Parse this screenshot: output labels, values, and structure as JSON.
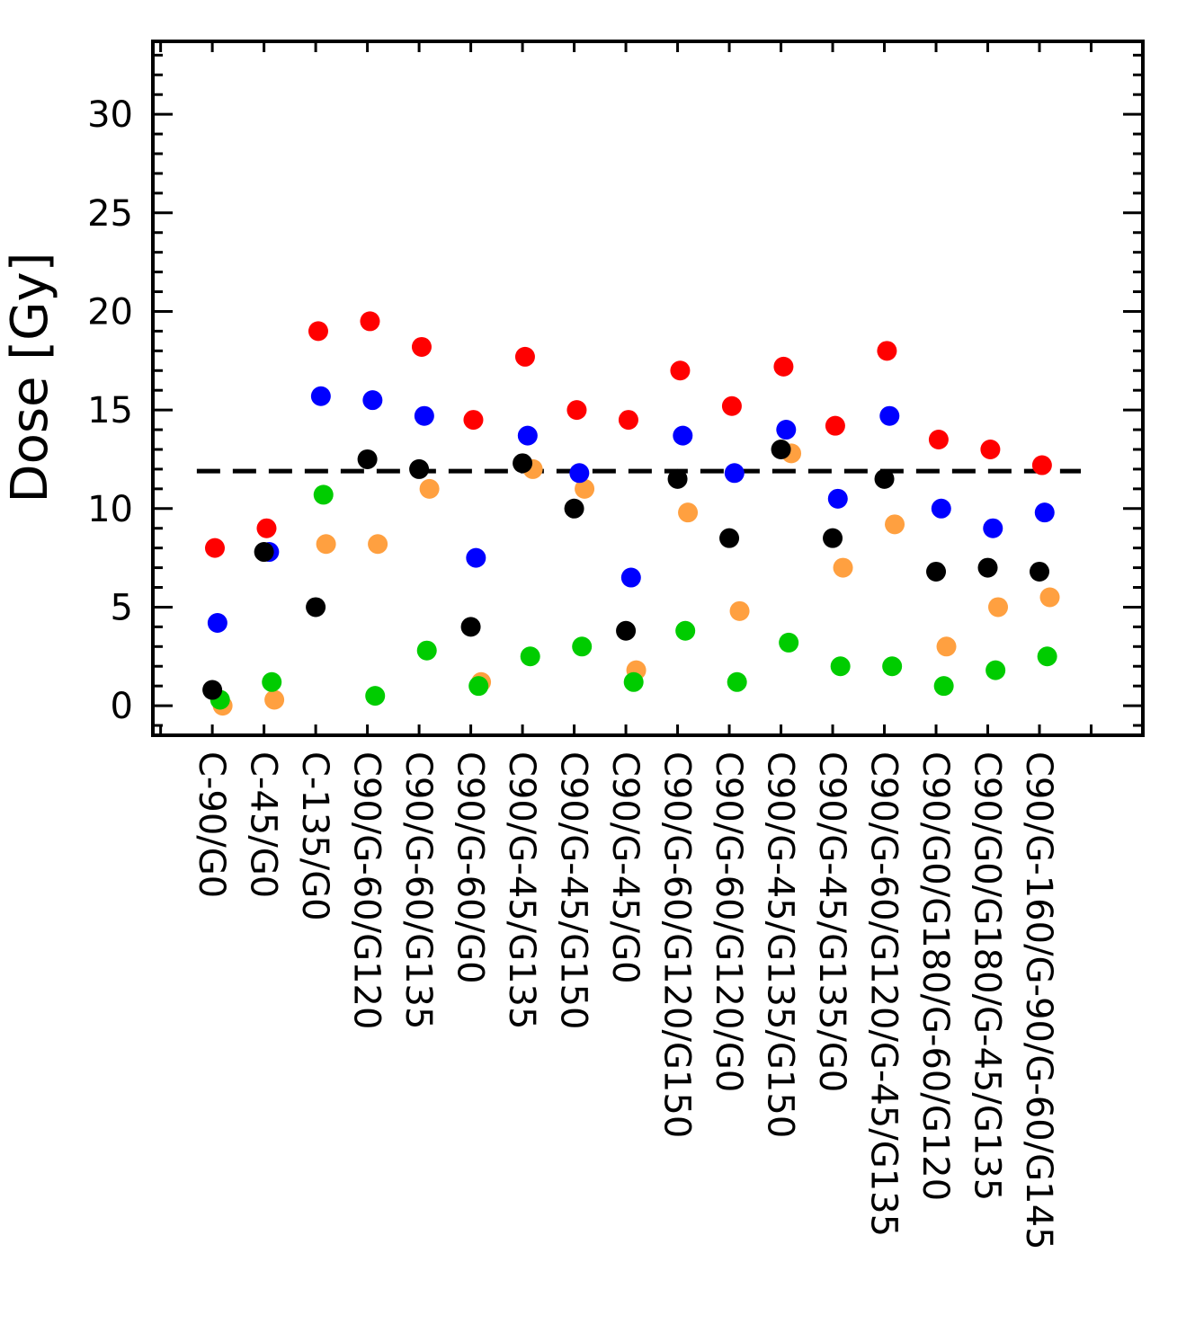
{
  "chart_data": {
    "type": "scatter",
    "ylabel": "Dose  [Gy]",
    "xlabel": "",
    "title": "",
    "ylim": [
      -1.5,
      33.7
    ],
    "yticks": [
      0,
      5,
      10,
      15,
      20,
      25,
      30
    ],
    "grid": false,
    "legend": "none",
    "reference_line": {
      "y": 11.9,
      "style": "dashed",
      "color": "#000000"
    },
    "categories": [
      "C-90/G0",
      "C-45/G0",
      "C-135/G0",
      "C90/G-60/G120",
      "C90/G-60/G135",
      "C90/G-60/G0",
      "C90/G-45/G135",
      "C90/G-45/G150",
      "C90/G-45/G0",
      "C90/G-60/G120/G150",
      "C90/G-60/G120/G0",
      "C90/G-45/G135/G150",
      "C90/G-45/G135/G0",
      "C90/G-60/G120/G-45/G135",
      "C90/G0/G180/G-60/G120",
      "C90/G0/G180/G-45/G135",
      "C90/G-160/G-90/G-60/G145"
    ],
    "series": [
      {
        "color": "#ff0000",
        "offset": 0.05,
        "values": [
          8.0,
          9.0,
          19.0,
          19.5,
          18.2,
          14.5,
          17.7,
          15.0,
          14.5,
          17.0,
          15.2,
          17.2,
          14.2,
          18.0,
          13.5,
          13.0,
          12.2
        ]
      },
      {
        "color": "#0000ff",
        "offset": 0.1,
        "values": [
          4.2,
          7.8,
          15.7,
          15.5,
          14.7,
          7.5,
          13.7,
          11.8,
          6.5,
          13.7,
          11.8,
          14.0,
          10.5,
          14.7,
          10.0,
          9.0,
          9.8
        ]
      },
      {
        "color": "#000000",
        "offset": 0.0,
        "values": [
          0.8,
          7.8,
          5.0,
          12.5,
          12.0,
          4.0,
          12.3,
          10.0,
          3.8,
          11.5,
          8.5,
          13.0,
          8.5,
          11.5,
          6.8,
          7.0,
          6.8
        ]
      },
      {
        "color": "#ffa040",
        "offset": 0.2,
        "values": [
          0.0,
          0.3,
          8.2,
          8.2,
          11.0,
          1.2,
          12.0,
          11.0,
          1.8,
          9.8,
          4.8,
          12.8,
          7.0,
          9.2,
          3.0,
          5.0,
          5.5
        ]
      },
      {
        "color": "#00cc00",
        "offset": 0.15,
        "values": [
          0.3,
          1.2,
          10.7,
          0.5,
          2.8,
          1.0,
          2.5,
          3.0,
          1.2,
          3.8,
          1.2,
          3.2,
          2.0,
          2.0,
          1.0,
          1.8,
          2.5
        ]
      }
    ]
  }
}
